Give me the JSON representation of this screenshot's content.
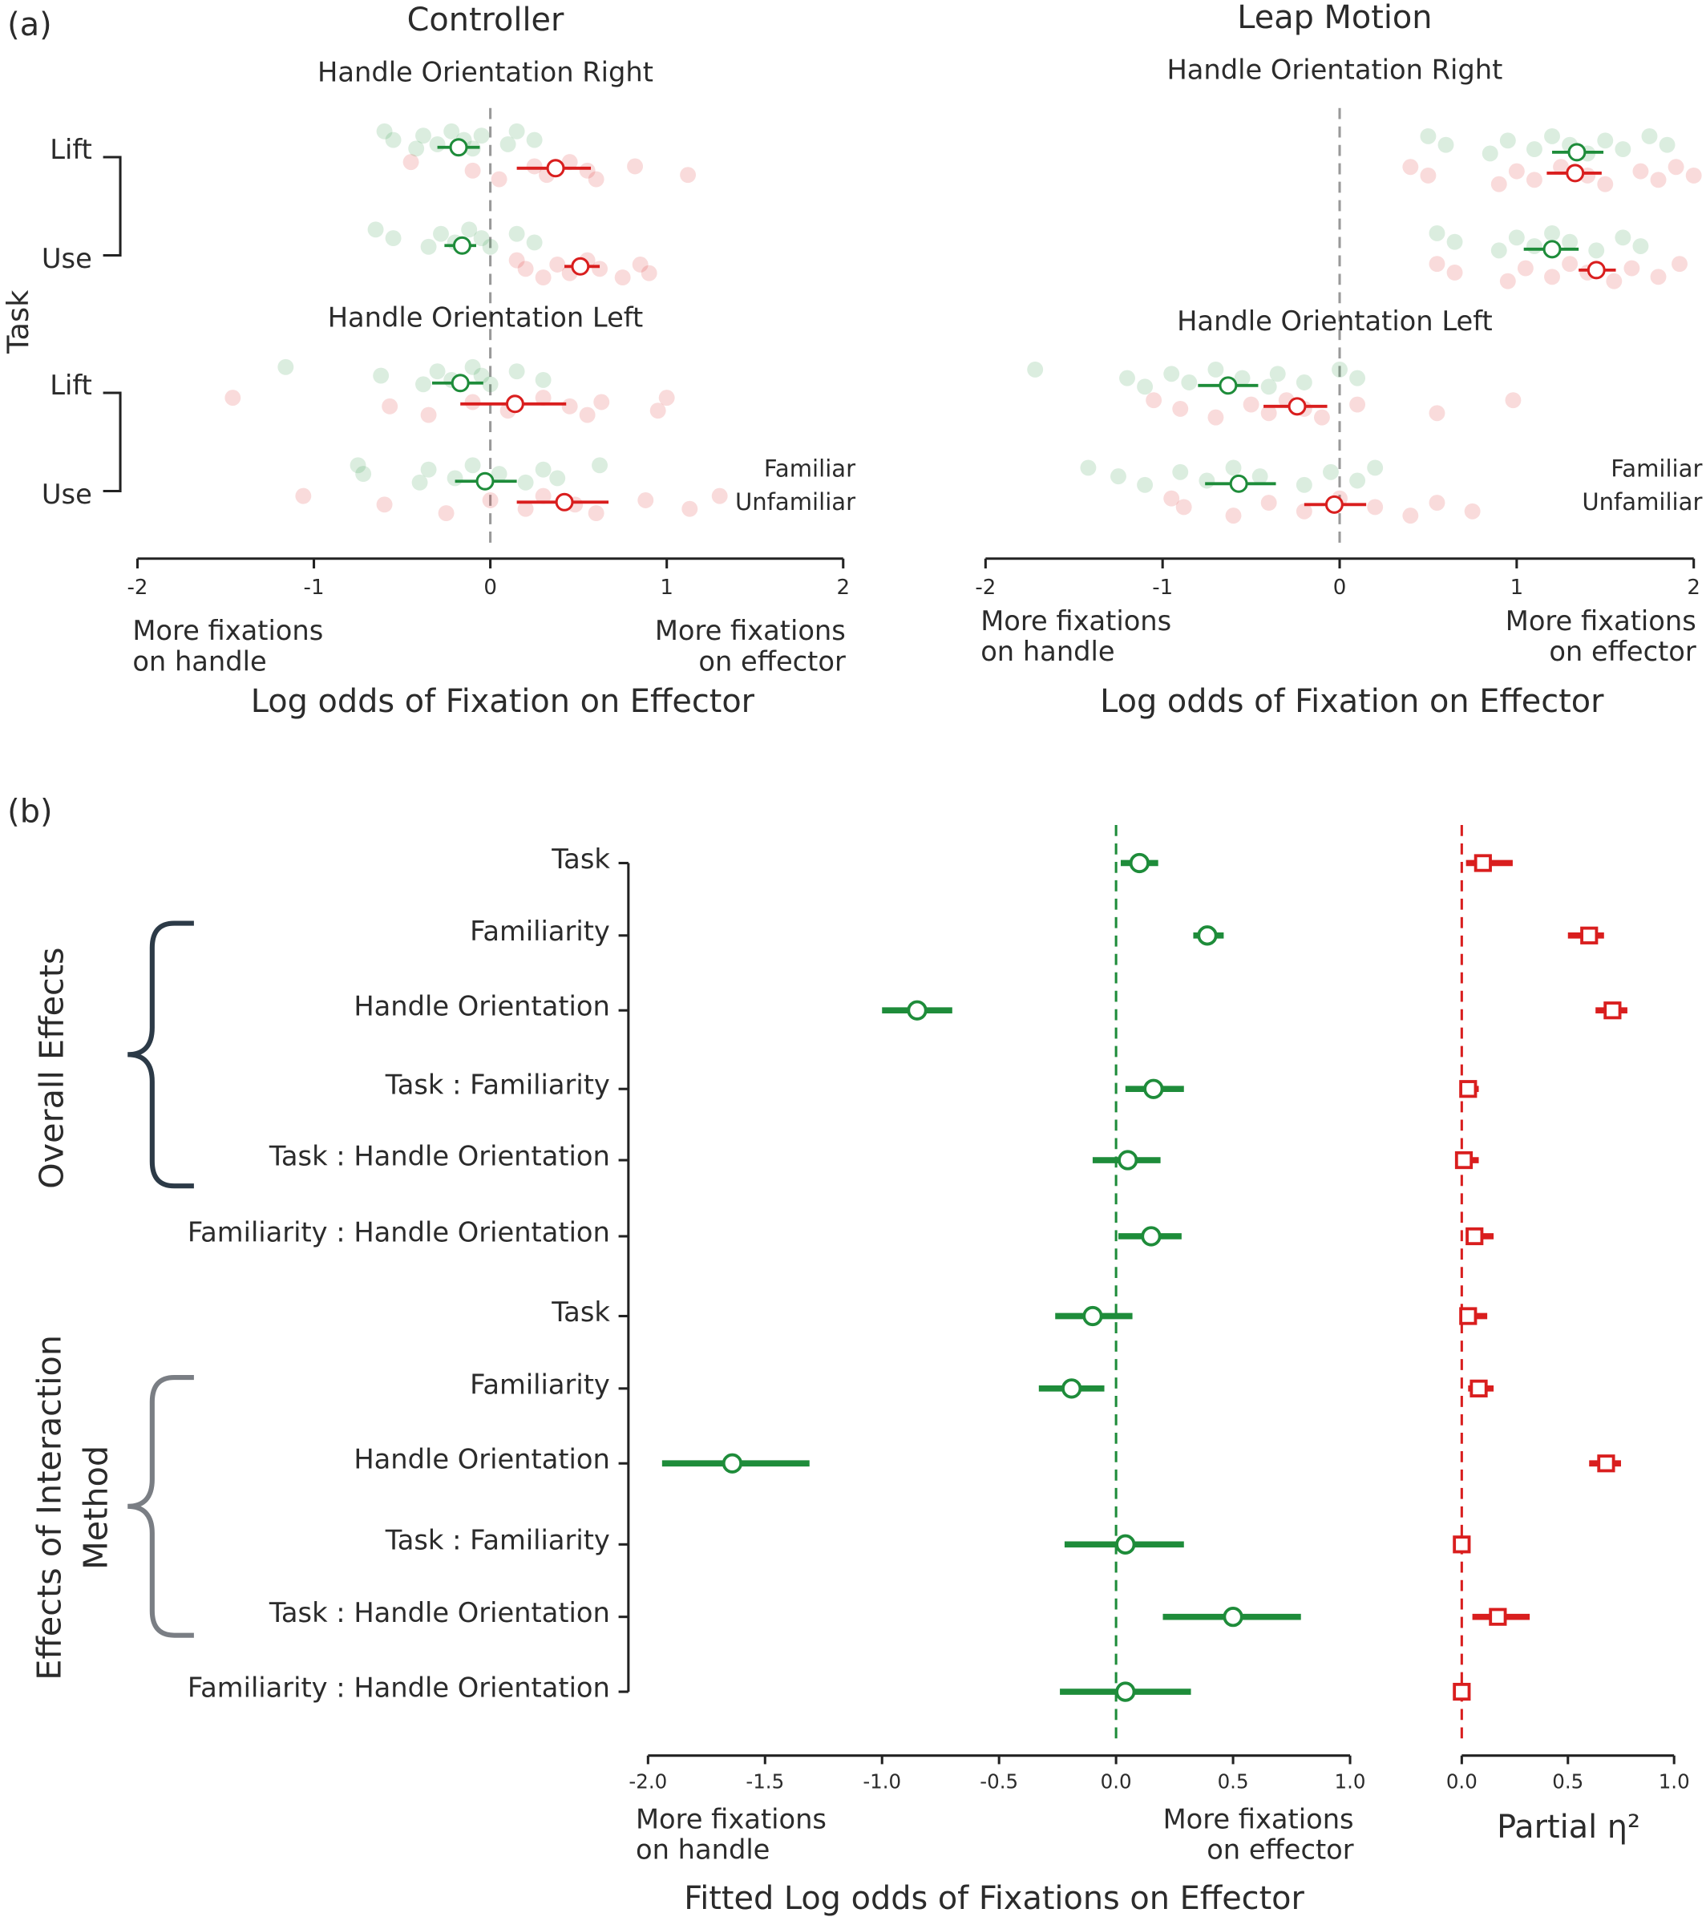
{
  "panel_labels": [
    "(a)",
    "(b)"
  ],
  "chart_data": [
    {
      "type": "dotplot",
      "title": "Controller",
      "ylabel": "Task",
      "xlim": [
        -2,
        2
      ],
      "xticks": [
        -2,
        -1,
        0,
        1,
        2
      ],
      "xlabel": "Log odds of Fixation on Effector",
      "left_note": [
        "More fixations",
        "on handle"
      ],
      "right_note": [
        "More fixations",
        "on effector"
      ],
      "legend": [
        {
          "name": "Familiar",
          "color": "#1e8c3a"
        },
        {
          "name": "Unfamiliar",
          "color": "#d91e1e"
        }
      ],
      "panels": [
        {
          "title": "Handle Orientation Right",
          "groups": [
            {
              "task": "Lift",
              "series": [
                {
                  "mean": -0.18,
                  "ci": [
                    -0.3,
                    -0.06
                  ],
                  "points": [
                    -0.6,
                    -0.55,
                    -0.42,
                    -0.38,
                    -0.3,
                    -0.22,
                    -0.15,
                    -0.1,
                    -0.05,
                    0.1,
                    0.15,
                    0.25
                  ]
                },
                {
                  "mean": 0.37,
                  "ci": [
                    0.15,
                    0.57
                  ],
                  "points": [
                    -0.45,
                    -0.1,
                    0.05,
                    0.25,
                    0.32,
                    0.45,
                    0.55,
                    0.6,
                    0.82,
                    1.12
                  ]
                }
              ]
            },
            {
              "task": "Use",
              "series": [
                {
                  "mean": -0.16,
                  "ci": [
                    -0.26,
                    -0.08
                  ],
                  "points": [
                    -0.65,
                    -0.55,
                    -0.35,
                    -0.28,
                    -0.2,
                    -0.12,
                    -0.05,
                    0.0,
                    0.15,
                    0.25
                  ]
                },
                {
                  "mean": 0.51,
                  "ci": [
                    0.42,
                    0.62
                  ],
                  "points": [
                    0.15,
                    0.2,
                    0.3,
                    0.38,
                    0.45,
                    0.55,
                    0.62,
                    0.75,
                    0.85,
                    0.9
                  ]
                }
              ]
            }
          ]
        },
        {
          "title": "Handle Orientation Left",
          "groups": [
            {
              "task": "Lift",
              "series": [
                {
                  "mean": -0.17,
                  "ci": [
                    -0.33,
                    -0.04
                  ],
                  "points": [
                    -1.16,
                    -0.62,
                    -0.38,
                    -0.3,
                    -0.22,
                    -0.1,
                    -0.05,
                    0.0,
                    0.15,
                    0.3
                  ]
                },
                {
                  "mean": 0.14,
                  "ci": [
                    -0.17,
                    0.43
                  ],
                  "points": [
                    -1.46,
                    -0.57,
                    -0.35,
                    -0.1,
                    0.1,
                    0.3,
                    0.45,
                    0.55,
                    0.63,
                    0.95,
                    1.0
                  ]
                }
              ]
            },
            {
              "task": "Use",
              "series": [
                {
                  "mean": -0.03,
                  "ci": [
                    -0.2,
                    0.15
                  ],
                  "points": [
                    -0.75,
                    -0.72,
                    -0.4,
                    -0.35,
                    -0.2,
                    -0.1,
                    0.05,
                    0.2,
                    0.3,
                    0.38,
                    0.62
                  ]
                },
                {
                  "mean": 0.42,
                  "ci": [
                    0.15,
                    0.67
                  ],
                  "points": [
                    -1.06,
                    -0.6,
                    -0.25,
                    0.0,
                    0.2,
                    0.3,
                    0.48,
                    0.6,
                    0.88,
                    1.13,
                    1.3
                  ]
                }
              ]
            }
          ]
        }
      ]
    },
    {
      "type": "dotplot",
      "title": "Leap Motion",
      "xlim": [
        -2,
        2
      ],
      "xticks": [
        -2,
        -1,
        0,
        1,
        2
      ],
      "xlabel": "Log odds of Fixation on Effector",
      "left_note": [
        "More fixations",
        "on handle"
      ],
      "right_note": [
        "More  fixations",
        "on effector"
      ],
      "legend": [
        {
          "name": "Familiar",
          "color": "#1e8c3a"
        },
        {
          "name": "Unfamiliar",
          "color": "#d91e1e"
        }
      ],
      "panels": [
        {
          "title": "Handle Orientation Right",
          "groups": [
            {
              "series": [
                {
                  "mean": 1.34,
                  "ci": [
                    1.2,
                    1.49
                  ],
                  "points": [
                    0.5,
                    0.6,
                    0.85,
                    0.95,
                    1.1,
                    1.2,
                    1.3,
                    1.4,
                    1.5,
                    1.6,
                    1.75,
                    1.85
                  ]
                },
                {
                  "mean": 1.33,
                  "ci": [
                    1.17,
                    1.48
                  ],
                  "points": [
                    0.4,
                    0.5,
                    0.9,
                    1.0,
                    1.1,
                    1.25,
                    1.4,
                    1.5,
                    1.7,
                    1.8,
                    1.9,
                    2.0
                  ]
                }
              ]
            },
            {
              "series": [
                {
                  "mean": 1.2,
                  "ci": [
                    1.04,
                    1.35
                  ],
                  "points": [
                    0.55,
                    0.65,
                    0.9,
                    1.0,
                    1.1,
                    1.2,
                    1.3,
                    1.45,
                    1.6,
                    1.7
                  ]
                },
                {
                  "mean": 1.45,
                  "ci": [
                    1.35,
                    1.56
                  ],
                  "points": [
                    0.55,
                    0.65,
                    0.95,
                    1.05,
                    1.2,
                    1.3,
                    1.4,
                    1.55,
                    1.65,
                    1.8,
                    1.92
                  ]
                }
              ]
            }
          ]
        },
        {
          "title": "Handle Orientation Left",
          "groups": [
            {
              "series": [
                {
                  "mean": -0.63,
                  "ci": [
                    -0.8,
                    -0.46
                  ],
                  "points": [
                    -1.72,
                    -1.2,
                    -1.1,
                    -0.95,
                    -0.85,
                    -0.7,
                    -0.55,
                    -0.4,
                    -0.35,
                    -0.2,
                    0.0,
                    0.1
                  ]
                },
                {
                  "mean": -0.24,
                  "ci": [
                    -0.43,
                    -0.07
                  ],
                  "points": [
                    -1.05,
                    -0.9,
                    -0.7,
                    -0.5,
                    -0.4,
                    -0.3,
                    -0.2,
                    -0.1,
                    0.1,
                    0.55,
                    0.98
                  ]
                }
              ]
            },
            {
              "series": [
                {
                  "mean": -0.57,
                  "ci": [
                    -0.76,
                    -0.36
                  ],
                  "points": [
                    -1.42,
                    -1.25,
                    -1.1,
                    -0.9,
                    -0.75,
                    -0.6,
                    -0.45,
                    -0.2,
                    -0.05,
                    0.1,
                    0.2
                  ]
                },
                {
                  "mean": -0.03,
                  "ci": [
                    -0.2,
                    0.15
                  ],
                  "points": [
                    -0.95,
                    -0.88,
                    -0.6,
                    -0.4,
                    -0.2,
                    0.0,
                    0.2,
                    0.4,
                    0.55,
                    0.75
                  ]
                }
              ]
            }
          ]
        }
      ]
    },
    {
      "type": "forest",
      "xlim": [
        -2,
        1
      ],
      "xticks": [
        {
          "value": -2,
          "label": "-2.0"
        },
        -1.5,
        {
          "value": -1,
          "label": "-1.0"
        },
        -0.5,
        {
          "value": 0,
          "label": "0.0"
        },
        0.5,
        {
          "value": 1,
          "label": "1.0"
        }
      ],
      "xlabel": "Fitted Log odds of Fixations on Effector",
      "left_note": [
        "More fixations",
        "on handle"
      ],
      "right_note": [
        "More fixations",
        "on effector"
      ],
      "color": "#1e8c3a",
      "eta_xlim": [
        0,
        1
      ],
      "eta_xticks": [
        {
          "value": 0,
          "label": "0.0"
        },
        0.5,
        {
          "value": 1,
          "label": "1.0"
        }
      ],
      "eta_xlabel": "Partial η²",
      "eta_color": "#d91e1e",
      "groups": [
        {
          "name": [
            "Overall Effects"
          ],
          "text_color": "#2c3a47",
          "categories": [
            "Task",
            "Familiarity",
            "Handle Orientation",
            "Task : Familiarity",
            "Task : Handle Orientation",
            "Familiarity : Handle Orientation"
          ],
          "values": [
            0.1,
            0.39,
            -0.85,
            0.16,
            0.05,
            0.15
          ],
          "ci": [
            [
              0.02,
              0.18
            ],
            [
              0.33,
              0.46
            ],
            [
              -1.0,
              -0.7
            ],
            [
              0.04,
              0.29
            ],
            [
              -0.1,
              0.19
            ],
            [
              0.01,
              0.28
            ]
          ],
          "eta": [
            0.1,
            0.6,
            0.71,
            0.03,
            0.01,
            0.06
          ],
          "eta_ci": [
            [
              0.02,
              0.24
            ],
            [
              0.5,
              0.67
            ],
            [
              0.63,
              0.78
            ],
            [
              0.0,
              0.08
            ],
            [
              0.0,
              0.08
            ],
            [
              0.02,
              0.15
            ]
          ]
        },
        {
          "name": [
            "Effects of Interaction",
            "Method"
          ],
          "text_color": "#7a7e84",
          "categories": [
            "Task",
            "Familiarity",
            "Handle Orientation",
            "Task : Familiarity",
            "Task : Handle Orientation",
            "Familiarity : Handle Orientation"
          ],
          "values": [
            -0.1,
            -0.19,
            -1.64,
            0.04,
            0.5,
            0.04
          ],
          "ci": [
            [
              -0.26,
              0.07
            ],
            [
              -0.33,
              -0.05
            ],
            [
              -1.94,
              -1.31
            ],
            [
              -0.22,
              0.29
            ],
            [
              0.2,
              0.79
            ],
            [
              -0.24,
              0.32
            ]
          ],
          "eta": [
            0.03,
            0.08,
            0.68,
            0.0,
            0.17,
            0.0
          ],
          "eta_ci": [
            [
              0.0,
              0.12
            ],
            [
              0.03,
              0.15
            ],
            [
              0.6,
              0.75
            ],
            [
              0.0,
              0.02
            ],
            [
              0.05,
              0.32
            ],
            [
              0.0,
              0.02
            ]
          ]
        }
      ]
    }
  ]
}
